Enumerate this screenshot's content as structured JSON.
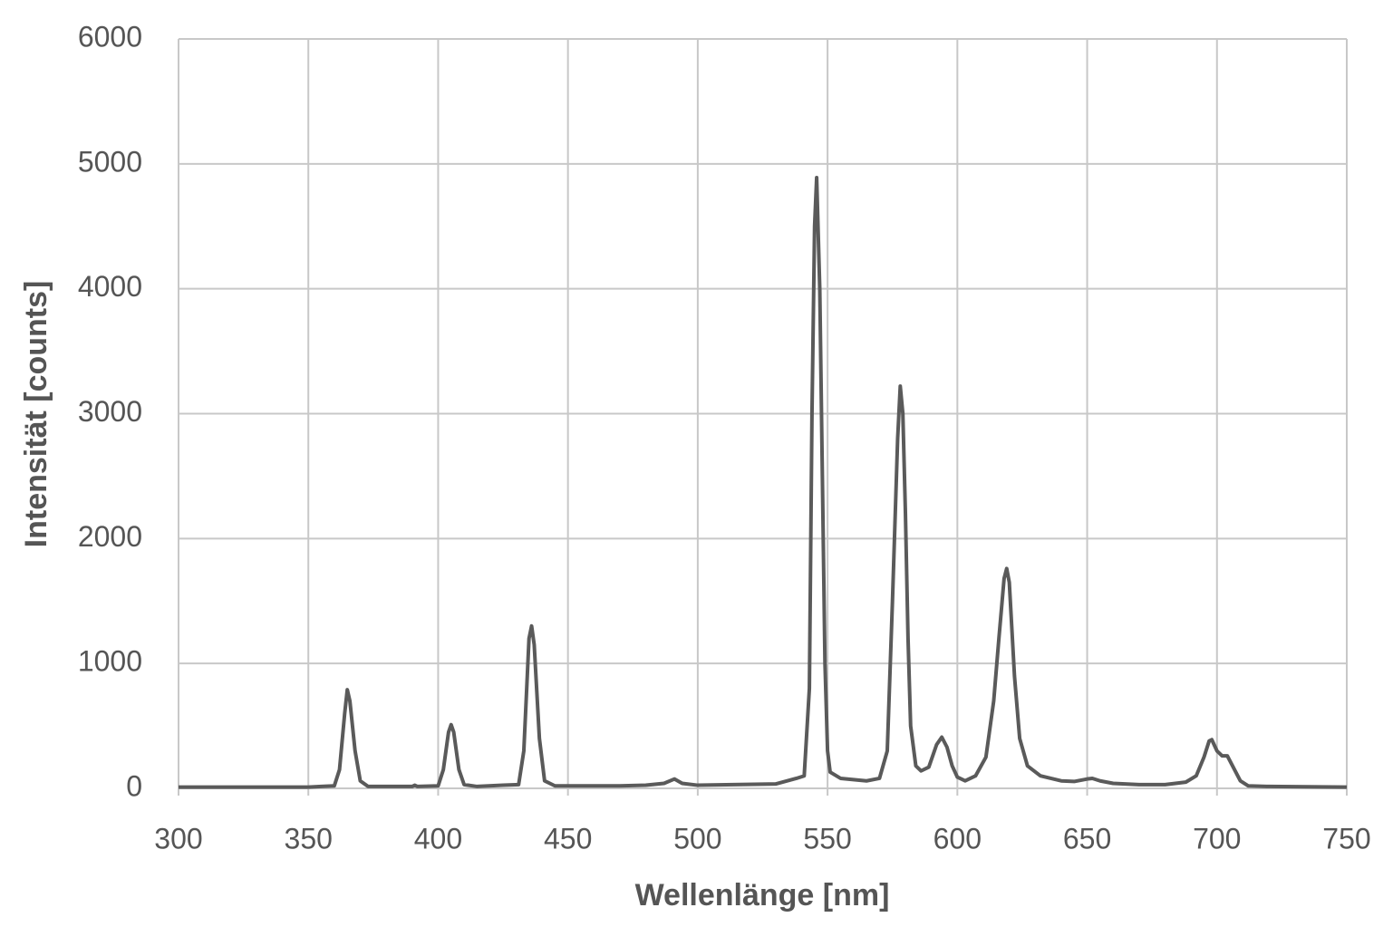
{
  "chart_data": {
    "type": "line",
    "xlabel": "Wellenlänge [nm]",
    "ylabel": "Intensität [counts]",
    "x": [
      300,
      350,
      355,
      360,
      362,
      364,
      365,
      366,
      368,
      370,
      373,
      390,
      391,
      392,
      400,
      402,
      404,
      405,
      406,
      408,
      410,
      415,
      425,
      431,
      433,
      435,
      436,
      437,
      439,
      441,
      445,
      470,
      480,
      487,
      491,
      494,
      500,
      530,
      538,
      541,
      543,
      544,
      545,
      545.8,
      547,
      548,
      549,
      550,
      551,
      555,
      565,
      570,
      573,
      575,
      577,
      578,
      579,
      580,
      581,
      582,
      584,
      586,
      589,
      592,
      594,
      596,
      598,
      600,
      603,
      607,
      611,
      614,
      616,
      618,
      619,
      620,
      622,
      624,
      627,
      632,
      640,
      645,
      650,
      652,
      655,
      660,
      670,
      680,
      688,
      692,
      695,
      697,
      698,
      700,
      702,
      704,
      706,
      709,
      712,
      720,
      750
    ],
    "values": [
      10,
      10,
      15,
      20,
      150,
      600,
      790,
      700,
      300,
      60,
      15,
      15,
      25,
      15,
      20,
      150,
      450,
      510,
      450,
      150,
      30,
      15,
      25,
      30,
      300,
      1200,
      1300,
      1150,
      400,
      60,
      20,
      20,
      25,
      40,
      75,
      40,
      25,
      35,
      80,
      100,
      800,
      3000,
      4500,
      4890,
      4000,
      2500,
      1000,
      300,
      130,
      80,
      60,
      80,
      300,
      1500,
      2800,
      3220,
      3000,
      2200,
      1200,
      500,
      180,
      140,
      170,
      350,
      410,
      330,
      180,
      90,
      60,
      100,
      250,
      700,
      1200,
      1680,
      1760,
      1650,
      900,
      400,
      180,
      100,
      60,
      55,
      75,
      80,
      60,
      40,
      30,
      30,
      50,
      100,
      250,
      380,
      390,
      300,
      260,
      260,
      180,
      60,
      20,
      15,
      10
    ],
    "color": "#5a5a5a",
    "xlim": [
      300,
      750
    ],
    "xticks": [
      300,
      350,
      400,
      450,
      500,
      550,
      600,
      650,
      700,
      750
    ],
    "ylim": [
      0,
      6000
    ],
    "yticks": [
      0,
      1000,
      2000,
      3000,
      4000,
      5000,
      6000
    ],
    "grid": true
  }
}
